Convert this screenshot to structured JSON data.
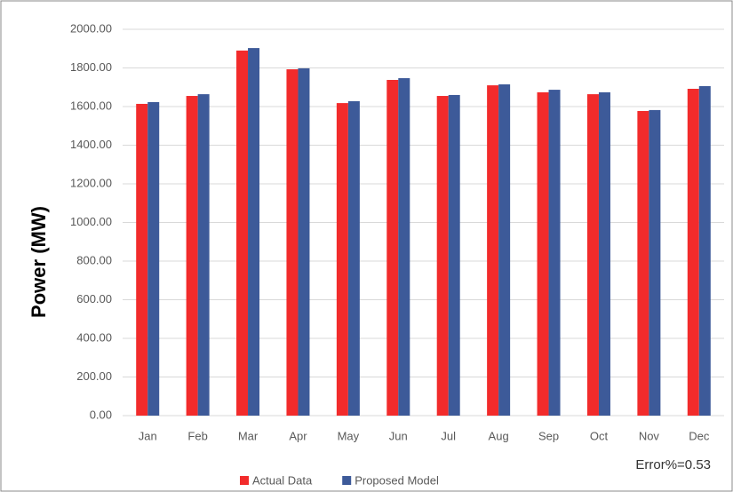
{
  "chart_data": {
    "type": "bar",
    "y_label": "Power (MW)",
    "annotation": "Error%=0.53",
    "categories": [
      "Jan",
      "Feb",
      "Mar",
      "Apr",
      "May",
      "Jun",
      "Jul",
      "Aug",
      "Sep",
      "Oct",
      "Nov",
      "Dec"
    ],
    "series": [
      {
        "name": "Actual Data",
        "color": "#f22b2b",
        "values": [
          1614,
          1655,
          1890,
          1793,
          1618,
          1738,
          1655,
          1710,
          1674,
          1664,
          1577,
          1692
        ]
      },
      {
        "name": "Proposed Model",
        "color": "#3d5a99",
        "values": [
          1623,
          1664,
          1903,
          1798,
          1628,
          1747,
          1660,
          1715,
          1687,
          1674,
          1582,
          1706
        ]
      }
    ],
    "ylim": [
      0,
      2000
    ],
    "yticks": [
      {
        "value": 0,
        "label": "0.00"
      },
      {
        "value": 200,
        "label": "200.00"
      },
      {
        "value": 400,
        "label": "400.00"
      },
      {
        "value": 600,
        "label": "600.00"
      },
      {
        "value": 800,
        "label": "800.00"
      },
      {
        "value": 1000,
        "label": "1000.00"
      },
      {
        "value": 1200,
        "label": "1200.00"
      },
      {
        "value": 1400,
        "label": "1400.00"
      },
      {
        "value": 1600,
        "label": "1600.00"
      },
      {
        "value": 1800,
        "label": "1800.00"
      },
      {
        "value": 2000,
        "label": "2000.00"
      }
    ],
    "grid": true,
    "legend": "bottom"
  }
}
